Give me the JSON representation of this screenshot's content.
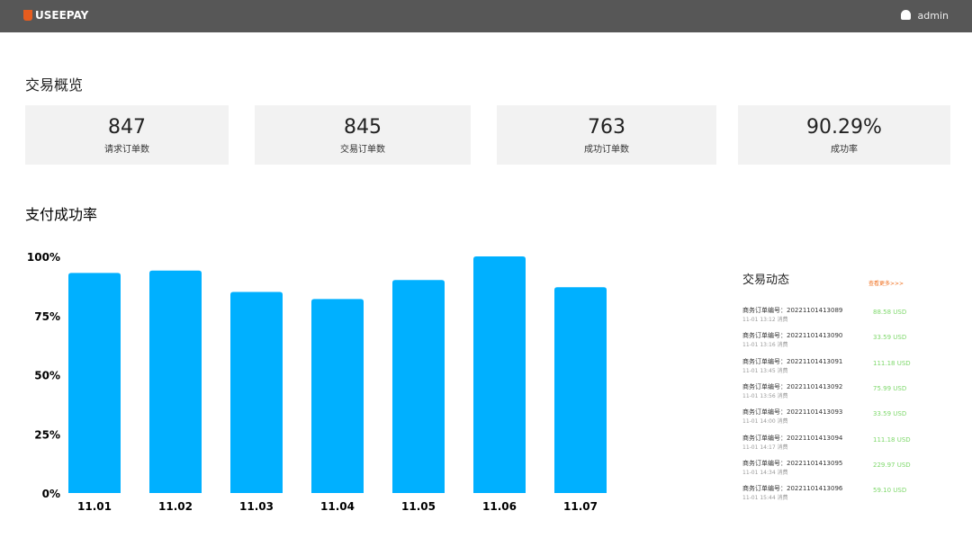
{
  "header": {
    "logo": "USEEPAY",
    "user": "admin"
  },
  "overview": {
    "title": "交易概览",
    "cards": [
      {
        "value": 847,
        "label": "请求订单数"
      },
      {
        "value": 845,
        "label": "交易订单数"
      },
      {
        "value": 763,
        "label": "成功订单数"
      },
      {
        "value": "90.29%",
        "label": "成功率"
      }
    ]
  },
  "chart_data": {
    "type": "bar",
    "title": "支付成功率",
    "categories": [
      "11.01",
      "11.02",
      "11.03",
      "11.04",
      "11.05",
      "11.06",
      "11.07"
    ],
    "values": [
      93,
      94,
      85,
      82,
      90,
      100,
      87
    ],
    "color": "#00b0ff",
    "ylim": [
      0,
      100
    ],
    "yticks": [
      {
        "value": 0,
        "label": "0%"
      },
      {
        "value": 25,
        "label": "25%"
      },
      {
        "value": 50,
        "label": "50%"
      },
      {
        "value": 75,
        "label": "75%"
      },
      {
        "value": 100,
        "label": "100%"
      }
    ]
  },
  "feed": {
    "title": "交易动态",
    "more": "查看更多>>>",
    "items": [
      {
        "order": "商务订单编号：20221101413089",
        "time": "11-01 13:12 消费",
        "amount": "88.58 USD"
      },
      {
        "order": "商务订单编号：20221101413090",
        "time": "11-01 13:16 消费",
        "amount": "33.59 USD"
      },
      {
        "order": "商务订单编号：20221101413091",
        "time": "11-01 13:45 消费",
        "amount": "111.18 USD"
      },
      {
        "order": "商务订单编号：20221101413092",
        "time": "11-01 13:56 消费",
        "amount": "75.99 USD"
      },
      {
        "order": "商务订单编号：20221101413093",
        "time": "11-01 14:00 消费",
        "amount": "33.59 USD"
      },
      {
        "order": "商务订单编号：20221101413094",
        "time": "11-01 14:17 消费",
        "amount": "111.18 USD"
      },
      {
        "order": "商务订单编号：20221101413095",
        "time": "11-01 14:34 消费",
        "amount": "229.97 USD"
      },
      {
        "order": "商务订单编号：20221101413096",
        "time": "11-01 15:44 消费",
        "amount": "59.10 USD"
      }
    ]
  }
}
